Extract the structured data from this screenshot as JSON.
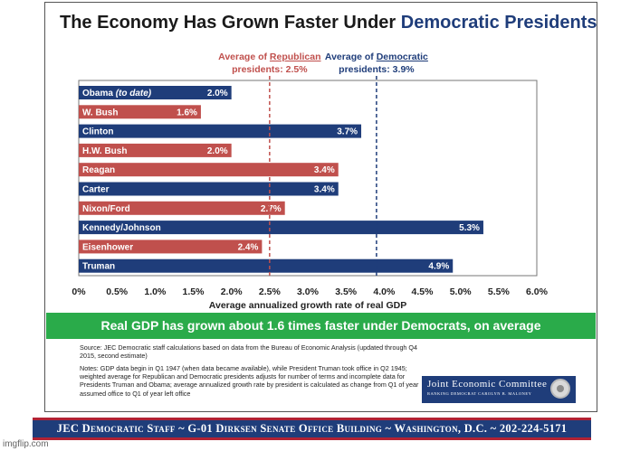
{
  "title": {
    "prefix": "The Economy Has Grown Faster Under",
    "accent": "Democratic Presidents"
  },
  "chart_data": {
    "type": "bar",
    "orientation": "horizontal",
    "categories": [
      "Obama (to date)",
      "W. Bush",
      "Clinton",
      "H.W. Bush",
      "Reagan",
      "Carter",
      "Nixon/Ford",
      "Kennedy/Johnson",
      "Eisenhower",
      "Truman"
    ],
    "values": [
      2.0,
      1.6,
      3.7,
      2.0,
      3.4,
      3.4,
      2.7,
      5.3,
      2.4,
      4.9
    ],
    "value_labels": [
      "2.0%",
      "1.6%",
      "3.7%",
      "2.0%",
      "3.4%",
      "3.4%",
      "2.7%",
      "5.3%",
      "2.4%",
      "4.9%"
    ],
    "party": [
      "D",
      "R",
      "D",
      "R",
      "R",
      "D",
      "R",
      "D",
      "R",
      "D"
    ],
    "xlim": [
      0,
      6.0
    ],
    "xticks": [
      "0%",
      "0.5%",
      "1.0%",
      "1.5%",
      "2.0%",
      "2.5%",
      "3.0%",
      "3.5%",
      "4.0%",
      "4.5%",
      "5.0%",
      "5.5%",
      "6.0%"
    ],
    "xlabel": "Average annualized growth rate of real GDP",
    "reference_lines": [
      {
        "value": 2.5,
        "label_line1_prefix": "Average of ",
        "label_line1_party": "Republican",
        "label_line2": "presidents: 2.5%",
        "party": "R"
      },
      {
        "value": 3.9,
        "label_line1_prefix": "Average of ",
        "label_line1_party": "Democratic",
        "label_line2": "presidents: 3.9%",
        "party": "D"
      }
    ],
    "colors": {
      "D": "#1f3d7a",
      "R": "#c0504d"
    }
  },
  "banner": "Real GDP has grown about 1.6 times faster under Democrats, on average",
  "source": "Source: JEC Democratic staff calculations based on data from the Bureau of Economic Analysis (updated through Q4 2015, second estimate)",
  "notes": "Notes: GDP data begin in Q1 1947 (when data became available), while President Truman took office in Q2 1945; weighted average for Republican and Democratic presidents adjusts for number of terms and incomplete data for Presidents Truman and Obama; average annualized growth rate by president is calculated as change from Q1 of year assumed office to Q1 of year left office",
  "jec_box": {
    "name": "Joint Economic Committee",
    "sub": "RANKING DEMOCRAT CAROLYN B. MALONEY"
  },
  "footer": "JEC Democratic Staff ~ G-01 Dirksen Senate Office Building ~ Washington, D.C. ~ 202-224-5171",
  "watermark": "imgflip.com"
}
